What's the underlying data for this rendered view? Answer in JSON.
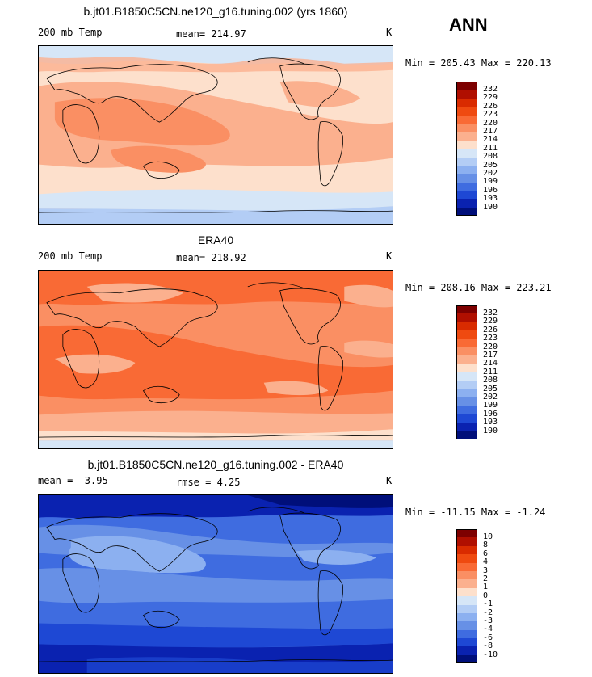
{
  "season": "ANN",
  "panels": [
    {
      "title": "b.jt01.B1850C5CN.ne120_g16.tuning.002 (yrs 1860)",
      "left_label": "200 mb Temp",
      "center_label": "mean= 214.97",
      "units": "K",
      "minmax": "Min = 205.43 Max = 220.13",
      "levels": [
        "232",
        "229",
        "226",
        "223",
        "220",
        "217",
        "214",
        "211",
        "208",
        "205",
        "202",
        "199",
        "196",
        "193",
        "190"
      ]
    },
    {
      "title": "ERA40",
      "left_label": "200 mb Temp",
      "center_label": "mean= 218.92",
      "units": "K",
      "minmax": "Min = 208.16 Max = 223.21",
      "levels": [
        "232",
        "229",
        "226",
        "223",
        "220",
        "217",
        "214",
        "211",
        "208",
        "205",
        "202",
        "199",
        "196",
        "193",
        "190"
      ]
    },
    {
      "title": "b.jt01.B1850C5CN.ne120_g16.tuning.002 - ERA40",
      "left_label": "mean =   -3.95",
      "center_label": "rmse =    4.25",
      "units": "K",
      "minmax": "Min = -11.15 Max =  -1.24",
      "levels": [
        "10",
        "8",
        "6",
        "4",
        "3",
        "2",
        "1",
        "0",
        "-1",
        "-2",
        "-3",
        "-4",
        "-6",
        "-8",
        "-10"
      ]
    }
  ],
  "colors": {
    "scale": [
      "#7d0000",
      "#b00f00",
      "#d92b00",
      "#ef4a10",
      "#f96a35",
      "#fa8f63",
      "#fbb08e",
      "#fde0cc",
      "#d6e6f7",
      "#b3cdf5",
      "#8cb0f0",
      "#6790e6",
      "#3f6ce0",
      "#1e48d4",
      "#0a22b0",
      "#000f7a"
    ],
    "land_outline": "#000000"
  }
}
